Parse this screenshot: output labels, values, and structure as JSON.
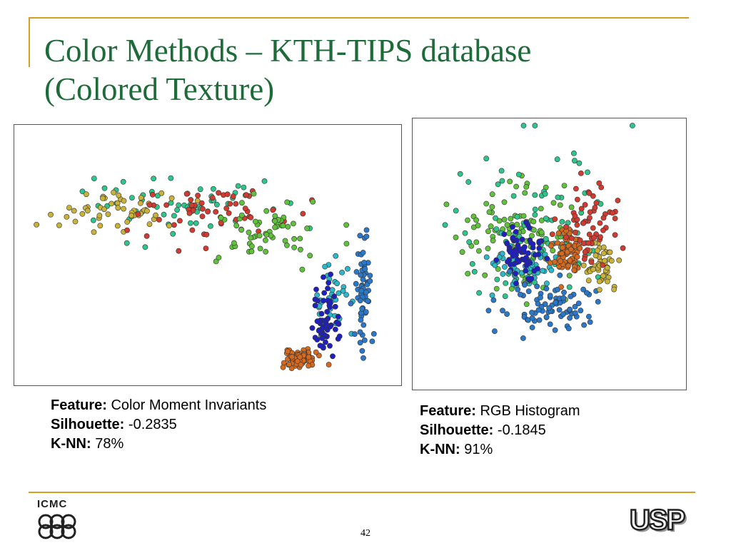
{
  "slide": {
    "title_line1": "Color Methods – KTH-TIPS database",
    "title_line2": "(Colored Texture)",
    "page_number": "42",
    "title_color": "#1e6b3a",
    "rule_color": "#d4a020"
  },
  "logos": {
    "icmc_text": "ICMC",
    "usp_text": "USP"
  },
  "panels": [
    {
      "feature_label": "Feature:",
      "feature_value": "Color Moment Invariants",
      "silhouette_label": "Silhouette:",
      "silhouette_value": "-0.2835",
      "knn_label": "K-NN:",
      "knn_value": "78%"
    },
    {
      "feature_label": "Feature:",
      "feature_value": "RGB Histogram",
      "silhouette_label": "Silhouette:",
      "silhouette_value": "-0.1845",
      "knn_label": "K-NN:",
      "knn_value": "91%"
    }
  ],
  "chart_data": [
    {
      "type": "scatter",
      "xlim": [
        0,
        100
      ],
      "ylim": [
        0,
        100
      ],
      "grid": false,
      "clusters": [
        {
          "color": "#2cc68c",
          "center": [
            40,
            70
          ],
          "spread": [
            20,
            10
          ],
          "count": 60
        },
        {
          "color": "#c9b23a",
          "center": [
            28,
            68
          ],
          "spread": [
            16,
            7
          ],
          "count": 55
        },
        {
          "color": "#d13b30",
          "center": [
            50,
            67
          ],
          "spread": [
            18,
            9
          ],
          "count": 55
        },
        {
          "color": "#5fc23a",
          "center": [
            65,
            60
          ],
          "spread": [
            12,
            12
          ],
          "count": 60
        },
        {
          "color": "#2bb8c8",
          "center": [
            83,
            30
          ],
          "spread": [
            4,
            14
          ],
          "count": 35
        },
        {
          "color": "#2020c0",
          "center": [
            82,
            24
          ],
          "spread": [
            3,
            12
          ],
          "count": 60
        },
        {
          "color": "#2b77c8",
          "center": [
            92,
            38
          ],
          "spread": [
            2,
            22
          ],
          "count": 60
        },
        {
          "color": "#d46a20",
          "center": [
            75,
            8
          ],
          "spread": [
            4,
            3
          ],
          "count": 70
        }
      ]
    },
    {
      "type": "scatter",
      "xlim": [
        0,
        100
      ],
      "ylim": [
        0,
        100
      ],
      "grid": false,
      "clusters": [
        {
          "color": "#5fc23a",
          "center": [
            38,
            58
          ],
          "spread": [
            20,
            18
          ],
          "count": 100
        },
        {
          "color": "#2cc68c",
          "center": [
            45,
            60
          ],
          "spread": [
            28,
            26
          ],
          "count": 80
        },
        {
          "color": "#2bb8c8",
          "center": [
            40,
            44
          ],
          "spread": [
            12,
            10
          ],
          "count": 50
        },
        {
          "color": "#2020c0",
          "center": [
            40,
            50
          ],
          "spread": [
            6,
            8
          ],
          "count": 70
        },
        {
          "color": "#2b77c8",
          "center": [
            50,
            30
          ],
          "spread": [
            15,
            8
          ],
          "count": 80
        },
        {
          "color": "#d46a20",
          "center": [
            57,
            51
          ],
          "spread": [
            5,
            7
          ],
          "count": 70
        },
        {
          "color": "#c9b23a",
          "center": [
            70,
            46
          ],
          "spread": [
            6,
            8
          ],
          "count": 50
        },
        {
          "color": "#d13b30",
          "center": [
            67,
            62
          ],
          "spread": [
            10,
            12
          ],
          "count": 60
        }
      ]
    }
  ]
}
